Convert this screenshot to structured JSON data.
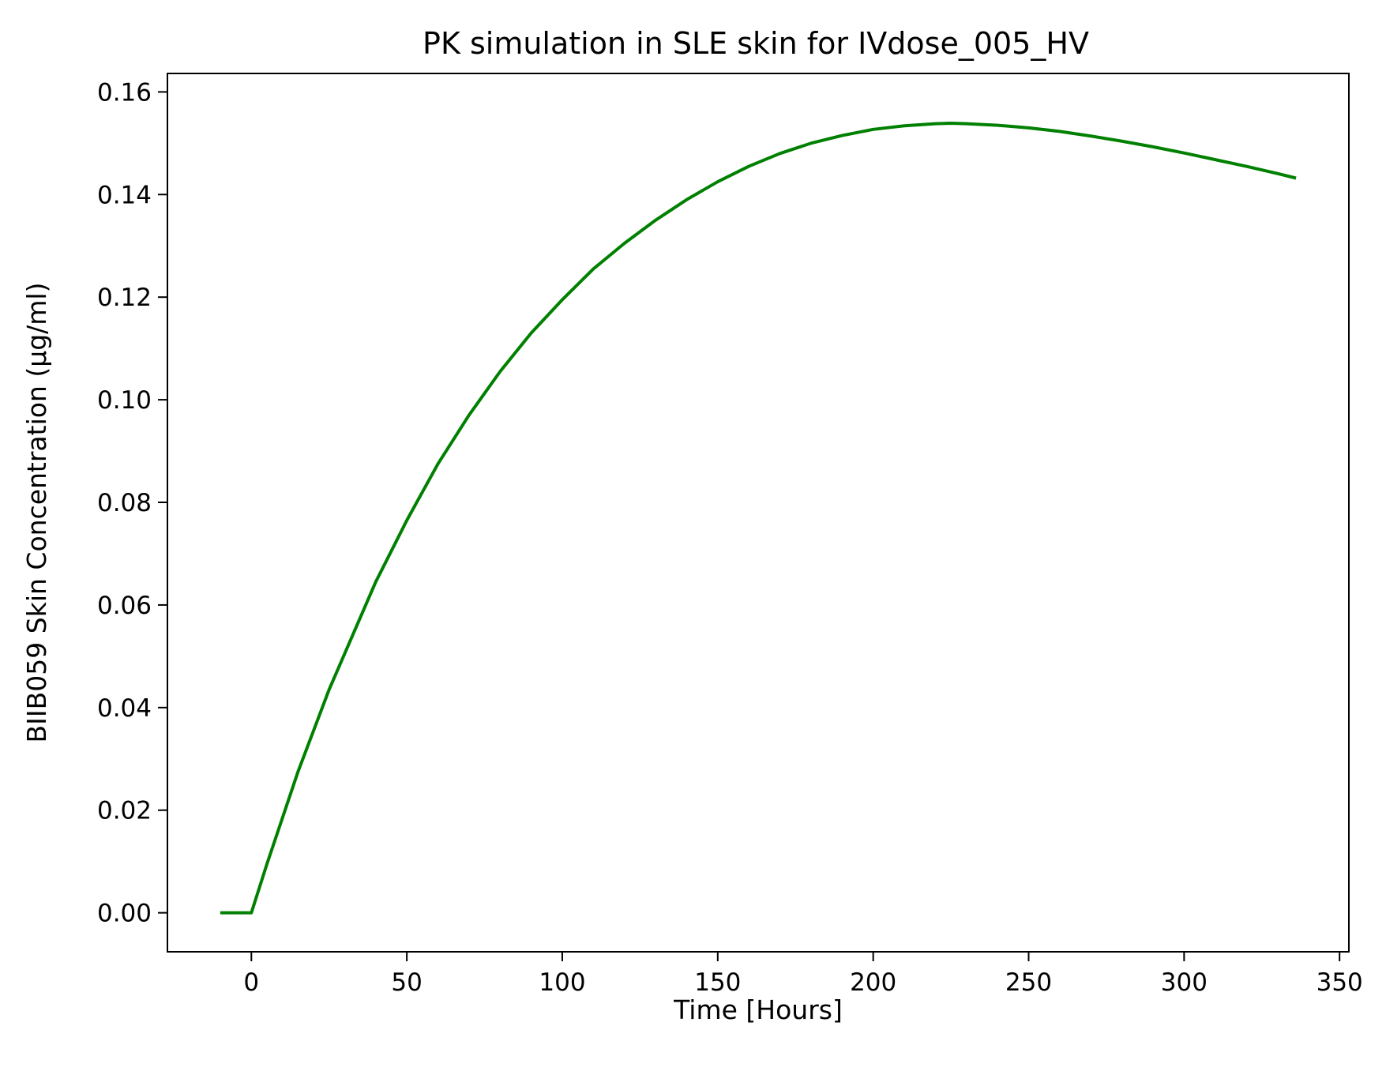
{
  "chart_data": {
    "type": "line",
    "title": "PK simulation in SLE skin for IVdose_005_HV",
    "xlabel": "Time [Hours]",
    "ylabel": "BIIB059 Skin Concentration (µg/ml)",
    "xlim": [
      -27,
      353
    ],
    "ylim": [
      -0.0076,
      0.1636
    ],
    "xticks": [
      0,
      50,
      100,
      150,
      200,
      250,
      300,
      350
    ],
    "xtick_labels": [
      "0",
      "50",
      "100",
      "150",
      "200",
      "250",
      "300",
      "350"
    ],
    "yticks": [
      0.0,
      0.02,
      0.04,
      0.06,
      0.08,
      0.1,
      0.12,
      0.14,
      0.16
    ],
    "ytick_labels": [
      "0.00",
      "0.02",
      "0.04",
      "0.06",
      "0.08",
      "0.10",
      "0.12",
      "0.14",
      "0.16"
    ],
    "grid": false,
    "legend": "none",
    "series": [
      {
        "color": "#008000",
        "x": [
          -10,
          0,
          5,
          10,
          15,
          20,
          25,
          30,
          40,
          50,
          60,
          70,
          80,
          90,
          100,
          110,
          120,
          130,
          140,
          150,
          160,
          170,
          180,
          190,
          200,
          210,
          220,
          225,
          230,
          240,
          250,
          260,
          270,
          280,
          290,
          300,
          310,
          320,
          330,
          336
        ],
        "y": [
          0.0,
          0.0,
          0.0095,
          0.0185,
          0.0275,
          0.0355,
          0.0435,
          0.0505,
          0.0645,
          0.0765,
          0.0875,
          0.097,
          0.1055,
          0.113,
          0.1195,
          0.1255,
          0.1305,
          0.135,
          0.139,
          0.1425,
          0.1455,
          0.148,
          0.15,
          0.1515,
          0.1527,
          0.1534,
          0.1538,
          0.1539,
          0.1538,
          0.1535,
          0.153,
          0.1523,
          0.1514,
          0.1504,
          0.1493,
          0.1481,
          0.1468,
          0.1455,
          0.1441,
          0.1432
        ]
      }
    ]
  }
}
